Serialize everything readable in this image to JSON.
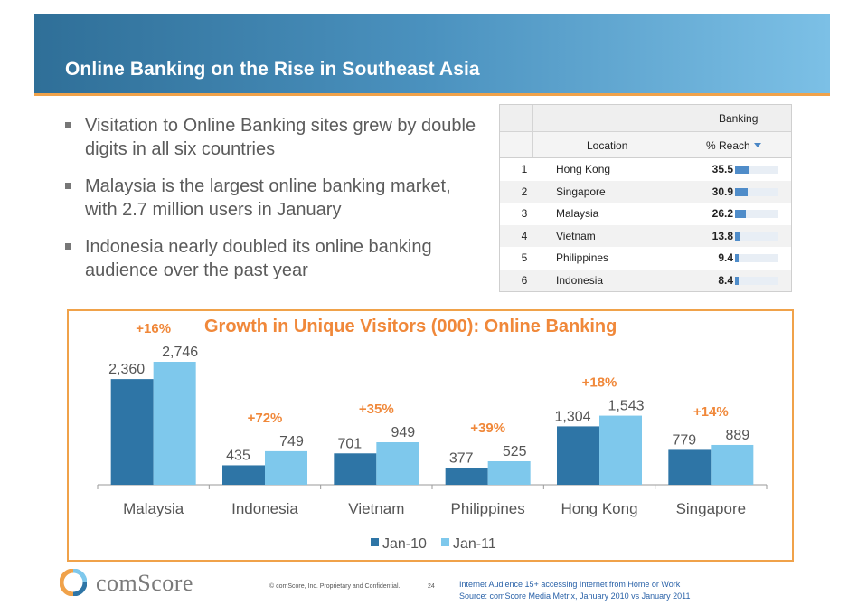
{
  "header": {
    "title": "Online Banking on the Rise in Southeast Asia"
  },
  "bullets": [
    "Visitation to Online Banking sites grew by double digits in all six countries",
    "Malaysia is the largest online banking market, with 2.7 million users in January",
    "Indonesia nearly doubled its online banking audience over the past year"
  ],
  "reach_table": {
    "group_header": "Banking",
    "col_location": "Location",
    "col_reach": "% Reach",
    "rows": [
      {
        "rank": "1",
        "location": "Hong Kong",
        "reach": "35.5",
        "value": 35.5
      },
      {
        "rank": "2",
        "location": "Singapore",
        "reach": "30.9",
        "value": 30.9
      },
      {
        "rank": "3",
        "location": "Malaysia",
        "reach": "26.2",
        "value": 26.2
      },
      {
        "rank": "4",
        "location": "Vietnam",
        "reach": "13.8",
        "value": 13.8
      },
      {
        "rank": "5",
        "location": "Philippines",
        "reach": "9.4",
        "value": 9.4
      },
      {
        "rank": "6",
        "location": "Indonesia",
        "reach": "8.4",
        "value": 8.4
      }
    ]
  },
  "chart_data": {
    "type": "bar",
    "title": "Growth in Unique Visitors (000): Online Banking",
    "categories": [
      "Malaysia",
      "Indonesia",
      "Vietnam",
      "Philippines",
      "Hong Kong",
      "Singapore"
    ],
    "series": [
      {
        "name": "Jan-10",
        "values": [
          2360,
          435,
          701,
          377,
          1304,
          779
        ],
        "labels": [
          "2,360",
          "435",
          "701",
          "377",
          "1,304",
          "779"
        ],
        "color": "#2e75a6"
      },
      {
        "name": "Jan-11",
        "values": [
          2746,
          749,
          949,
          525,
          1543,
          889
        ],
        "labels": [
          "2,746",
          "749",
          "949",
          "525",
          "1,543",
          "889"
        ],
        "color": "#7ec8ec"
      }
    ],
    "growth_labels": [
      "+16%",
      "+72%",
      "+35%",
      "+39%",
      "+18%",
      "+14%"
    ],
    "growth_color": "#f0883a",
    "ylim": [
      0,
      3000
    ],
    "grid": false,
    "legend": "bottom"
  },
  "footer": {
    "brand": "comScore",
    "copyright": "© comScore, Inc.  Proprietary and Confidential.",
    "page": "24",
    "source_line1": "Internet Audience 15+ accessing Internet from Home or Work",
    "source_line2": "Source:  comScore Media Metrix, January 2010 vs January 2011"
  }
}
